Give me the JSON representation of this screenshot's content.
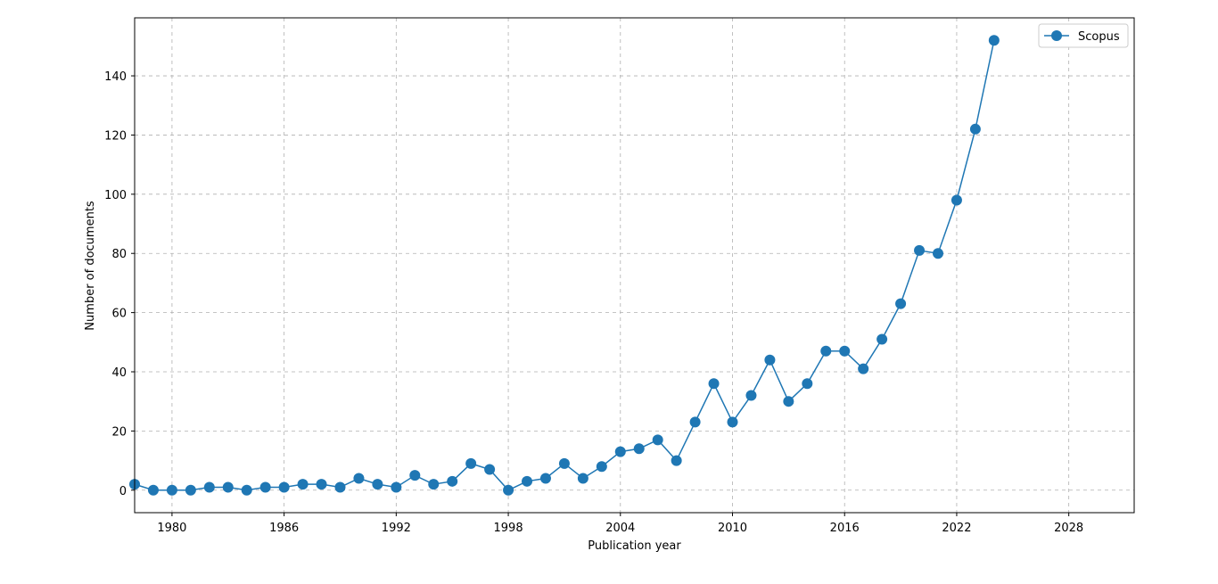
{
  "chart_data": {
    "type": "line",
    "xlabel": "Publication year",
    "ylabel": "Number of documents",
    "xlim": [
      1978,
      2031.5
    ],
    "ylim": [
      -7.6,
      159.6
    ],
    "xticks": [
      1980,
      1986,
      1992,
      1998,
      2004,
      2010,
      2016,
      2022,
      2028
    ],
    "yticks": [
      0,
      20,
      40,
      60,
      80,
      100,
      120,
      140
    ],
    "grid": true,
    "legend_position": "top-right",
    "color": "#1f77b4",
    "series": [
      {
        "name": "Scopus",
        "x": [
          1978,
          1979,
          1980,
          1981,
          1982,
          1983,
          1984,
          1985,
          1986,
          1987,
          1988,
          1989,
          1990,
          1991,
          1992,
          1993,
          1994,
          1995,
          1996,
          1997,
          1998,
          1999,
          2000,
          2001,
          2002,
          2003,
          2004,
          2005,
          2006,
          2007,
          2008,
          2009,
          2010,
          2011,
          2012,
          2013,
          2014,
          2015,
          2016,
          2017,
          2018,
          2019,
          2020,
          2021,
          2022,
          2023,
          2024
        ],
        "y": [
          2,
          0,
          0,
          0,
          1,
          1,
          0,
          1,
          1,
          2,
          2,
          1,
          4,
          2,
          1,
          5,
          2,
          3,
          9,
          7,
          0,
          3,
          4,
          9,
          4,
          8,
          13,
          14,
          17,
          10,
          23,
          36,
          23,
          32,
          44,
          30,
          36,
          47,
          47,
          41,
          51,
          63,
          81,
          80,
          98,
          122,
          152
        ]
      }
    ]
  }
}
